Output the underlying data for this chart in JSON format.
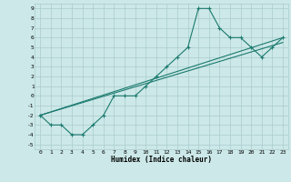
{
  "title": "",
  "xlabel": "Humidex (Indice chaleur)",
  "xlim": [
    -0.5,
    23.5
  ],
  "ylim": [
    -5.5,
    9.5
  ],
  "xticks": [
    0,
    1,
    2,
    3,
    4,
    5,
    6,
    7,
    8,
    9,
    10,
    11,
    12,
    13,
    14,
    15,
    16,
    17,
    18,
    19,
    20,
    21,
    22,
    23
  ],
  "yticks": [
    -5,
    -4,
    -3,
    -2,
    -1,
    0,
    1,
    2,
    3,
    4,
    5,
    6,
    7,
    8,
    9
  ],
  "bg_color": "#cce8e8",
  "grid_color": "#aacccc",
  "line_color": "#1a7a6e",
  "line1_x": [
    0,
    1,
    2,
    3,
    4,
    5,
    6,
    7,
    8,
    9,
    10,
    11,
    12,
    13,
    14,
    15,
    16,
    17,
    18,
    19,
    20,
    21,
    22,
    23
  ],
  "line1_y": [
    -2,
    -3,
    -3,
    -4,
    -4,
    -3,
    -2,
    0,
    0,
    0,
    1,
    2,
    3,
    4,
    5,
    9,
    9,
    7,
    6,
    6,
    5,
    4,
    5,
    6
  ],
  "line2_x": [
    0,
    23
  ],
  "line2_y": [
    -2,
    6
  ],
  "line3_x": [
    0,
    23
  ],
  "line3_y": [
    -2,
    5.5
  ]
}
